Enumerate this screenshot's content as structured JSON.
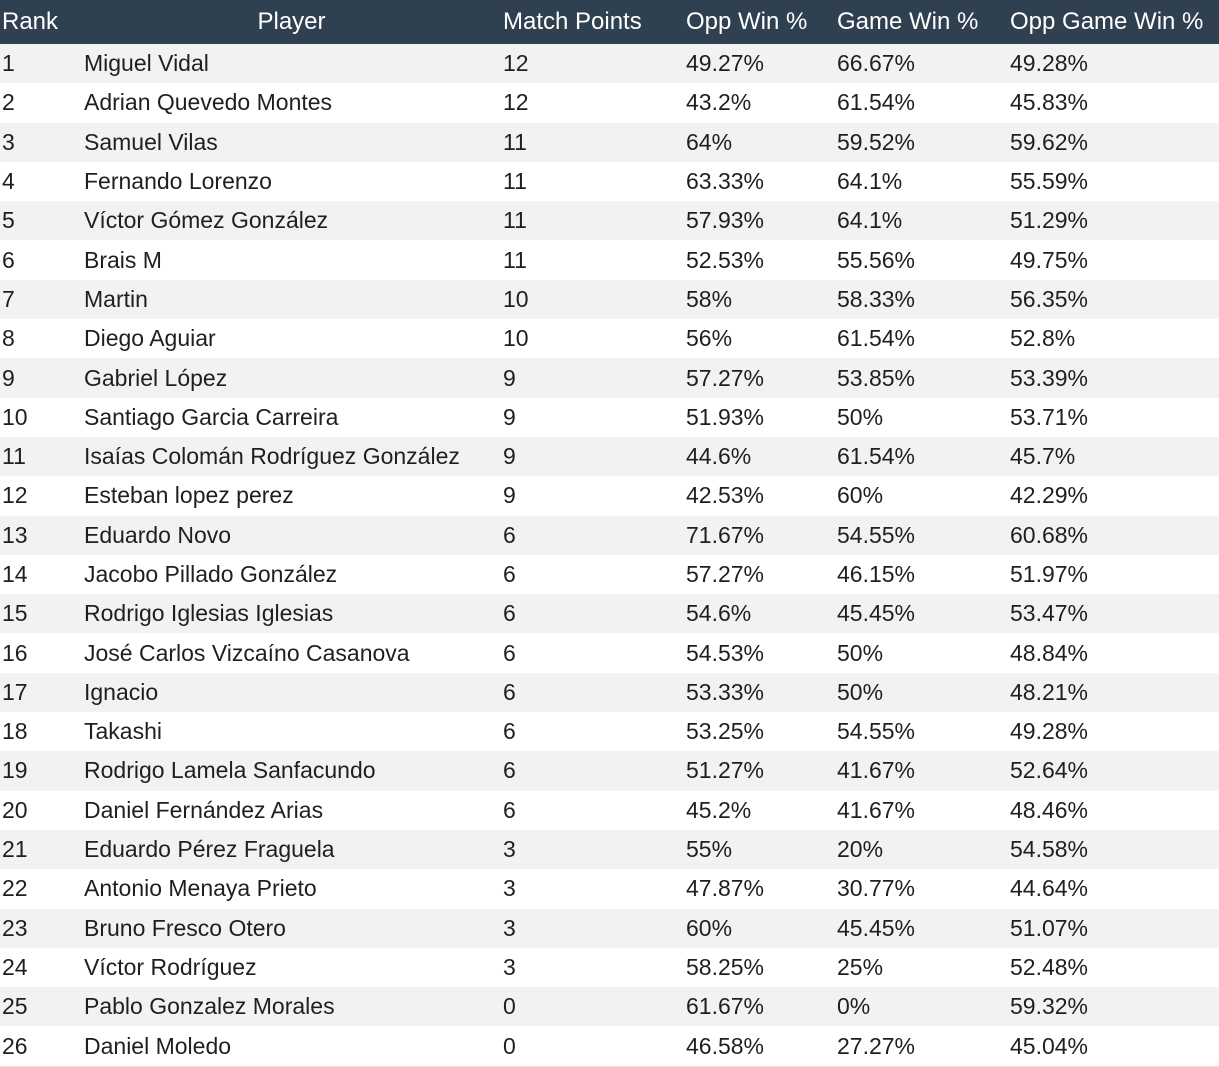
{
  "table": {
    "headers": {
      "rank": "Rank",
      "player": "Player",
      "match_points": "Match Points",
      "opp_win": "Opp Win %",
      "game_win": "Game Win %",
      "opp_game_win": "Opp Game Win %"
    },
    "rows": [
      {
        "rank": "1",
        "player": "Miguel Vidal",
        "match_points": "12",
        "opp_win": "49.27%",
        "game_win": "66.67%",
        "opp_game_win": "49.28%"
      },
      {
        "rank": "2",
        "player": "Adrian Quevedo Montes",
        "match_points": "12",
        "opp_win": "43.2%",
        "game_win": "61.54%",
        "opp_game_win": "45.83%"
      },
      {
        "rank": "3",
        "player": "Samuel Vilas",
        "match_points": "11",
        "opp_win": "64%",
        "game_win": "59.52%",
        "opp_game_win": "59.62%"
      },
      {
        "rank": "4",
        "player": "Fernando Lorenzo",
        "match_points": "11",
        "opp_win": "63.33%",
        "game_win": "64.1%",
        "opp_game_win": "55.59%"
      },
      {
        "rank": "5",
        "player": "Víctor Gómez González",
        "match_points": "11",
        "opp_win": "57.93%",
        "game_win": "64.1%",
        "opp_game_win": "51.29%"
      },
      {
        "rank": "6",
        "player": "Brais M",
        "match_points": "11",
        "opp_win": "52.53%",
        "game_win": "55.56%",
        "opp_game_win": "49.75%"
      },
      {
        "rank": "7",
        "player": "Martin",
        "match_points": "10",
        "opp_win": "58%",
        "game_win": "58.33%",
        "opp_game_win": "56.35%"
      },
      {
        "rank": "8",
        "player": "Diego Aguiar",
        "match_points": "10",
        "opp_win": "56%",
        "game_win": "61.54%",
        "opp_game_win": "52.8%"
      },
      {
        "rank": "9",
        "player": "Gabriel López",
        "match_points": "9",
        "opp_win": "57.27%",
        "game_win": "53.85%",
        "opp_game_win": "53.39%"
      },
      {
        "rank": "10",
        "player": "Santiago Garcia Carreira",
        "match_points": "9",
        "opp_win": "51.93%",
        "game_win": "50%",
        "opp_game_win": "53.71%"
      },
      {
        "rank": "11",
        "player": "Isaías Colomán Rodríguez González",
        "match_points": "9",
        "opp_win": "44.6%",
        "game_win": "61.54%",
        "opp_game_win": "45.7%"
      },
      {
        "rank": "12",
        "player": "Esteban lopez perez",
        "match_points": "9",
        "opp_win": "42.53%",
        "game_win": "60%",
        "opp_game_win": "42.29%"
      },
      {
        "rank": "13",
        "player": "Eduardo Novo",
        "match_points": "6",
        "opp_win": "71.67%",
        "game_win": "54.55%",
        "opp_game_win": "60.68%"
      },
      {
        "rank": "14",
        "player": "Jacobo Pillado González",
        "match_points": "6",
        "opp_win": "57.27%",
        "game_win": "46.15%",
        "opp_game_win": "51.97%"
      },
      {
        "rank": "15",
        "player": "Rodrigo Iglesias Iglesias",
        "match_points": "6",
        "opp_win": "54.6%",
        "game_win": "45.45%",
        "opp_game_win": "53.47%"
      },
      {
        "rank": "16",
        "player": "José Carlos Vizcaíno Casanova",
        "match_points": "6",
        "opp_win": "54.53%",
        "game_win": "50%",
        "opp_game_win": "48.84%"
      },
      {
        "rank": "17",
        "player": "Ignacio",
        "match_points": "6",
        "opp_win": "53.33%",
        "game_win": "50%",
        "opp_game_win": "48.21%"
      },
      {
        "rank": "18",
        "player": "Takashi",
        "match_points": "6",
        "opp_win": "53.25%",
        "game_win": "54.55%",
        "opp_game_win": "49.28%"
      },
      {
        "rank": "19",
        "player": "Rodrigo Lamela Sanfacundo",
        "match_points": "6",
        "opp_win": "51.27%",
        "game_win": "41.67%",
        "opp_game_win": "52.64%"
      },
      {
        "rank": "20",
        "player": "Daniel Fernández Arias",
        "match_points": "6",
        "opp_win": "45.2%",
        "game_win": "41.67%",
        "opp_game_win": "48.46%"
      },
      {
        "rank": "21",
        "player": "Eduardo Pérez Fraguela",
        "match_points": "3",
        "opp_win": "55%",
        "game_win": "20%",
        "opp_game_win": "54.58%"
      },
      {
        "rank": "22",
        "player": "Antonio Menaya Prieto",
        "match_points": "3",
        "opp_win": "47.87%",
        "game_win": "30.77%",
        "opp_game_win": "44.64%"
      },
      {
        "rank": "23",
        "player": "Bruno Fresco Otero",
        "match_points": "3",
        "opp_win": "60%",
        "game_win": "45.45%",
        "opp_game_win": "51.07%"
      },
      {
        "rank": "24",
        "player": "Víctor Rodríguez",
        "match_points": "3",
        "opp_win": "58.25%",
        "game_win": "25%",
        "opp_game_win": "52.48%"
      },
      {
        "rank": "25",
        "player": "Pablo Gonzalez Morales",
        "match_points": "0",
        "opp_win": "61.67%",
        "game_win": "0%",
        "opp_game_win": "59.32%"
      },
      {
        "rank": "26",
        "player": "Daniel Moledo",
        "match_points": "0",
        "opp_win": "46.58%",
        "game_win": "27.27%",
        "opp_game_win": "45.04%"
      }
    ]
  },
  "colors": {
    "header_bg": "#2f4050",
    "header_text": "#ffffff",
    "row_stripe": "#f2f2f2"
  }
}
